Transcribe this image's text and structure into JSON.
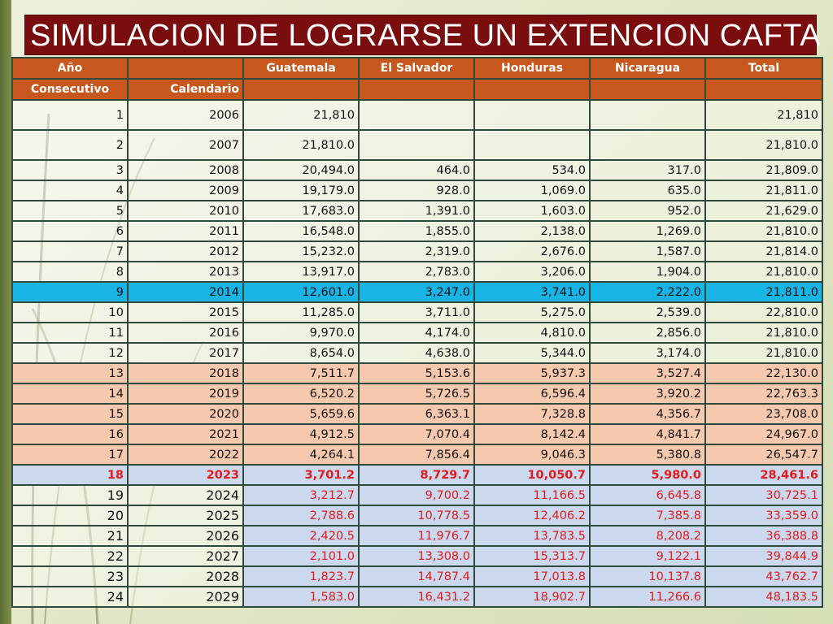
{
  "title": "SIMULACION DE LOGRARSE UN EXTENCION CAFTA",
  "headers": {
    "row1": [
      "Año",
      "",
      "Guatemala",
      "El Salvador",
      "Honduras",
      "Nicaragua",
      "Total"
    ],
    "row2": [
      "Consecutivo",
      "Calendario",
      "",
      "",
      "",
      "",
      ""
    ]
  },
  "rows": [
    {
      "n": "1",
      "year": "2006",
      "gt": "21,810",
      "sv": "",
      "hn": "",
      "ni": "",
      "total": "21,810",
      "style": "tall"
    },
    {
      "n": "2",
      "year": "2007",
      "gt": "21,810.0",
      "sv": "",
      "hn": "",
      "ni": "",
      "total": "21,810.0",
      "style": "tall"
    },
    {
      "n": "3",
      "year": "2008",
      "gt": "20,494.0",
      "sv": "464.0",
      "hn": "534.0",
      "ni": "317.0",
      "total": "21,809.0",
      "style": ""
    },
    {
      "n": "4",
      "year": "2009",
      "gt": "19,179.0",
      "sv": "928.0",
      "hn": "1,069.0",
      "ni": "635.0",
      "total": "21,811.0",
      "style": ""
    },
    {
      "n": "5",
      "year": "2010",
      "gt": "17,683.0",
      "sv": "1,391.0",
      "hn": "1,603.0",
      "ni": "952.0",
      "total": "21,629.0",
      "style": ""
    },
    {
      "n": "6",
      "year": "2011",
      "gt": "16,548.0",
      "sv": "1,855.0",
      "hn": "2,138.0",
      "ni": "1,269.0",
      "total": "21,810.0",
      "style": ""
    },
    {
      "n": "7",
      "year": "2012",
      "gt": "15,232.0",
      "sv": "2,319.0",
      "hn": "2,676.0",
      "ni": "1,587.0",
      "total": "21,814.0",
      "style": ""
    },
    {
      "n": "8",
      "year": "2013",
      "gt": "13,917.0",
      "sv": "2,783.0",
      "hn": "3,206.0",
      "ni": "1,904.0",
      "total": "21,810.0",
      "style": ""
    },
    {
      "n": "9",
      "year": "2014",
      "gt": "12,601.0",
      "sv": "3,247.0",
      "hn": "3,741.0",
      "ni": "2,222.0",
      "total": "21,811.0",
      "style": "hl-blue"
    },
    {
      "n": "10",
      "year": "2015",
      "gt": "11,285.0",
      "sv": "3,711.0",
      "hn": "5,275.0",
      "ni": "2,539.0",
      "total": "22,810.0",
      "style": ""
    },
    {
      "n": "11",
      "year": "2016",
      "gt": "9,970.0",
      "sv": "4,174.0",
      "hn": "4,810.0",
      "ni": "2,856.0",
      "total": "21,810.0",
      "style": ""
    },
    {
      "n": "12",
      "year": "2017",
      "gt": "8,654.0",
      "sv": "4,638.0",
      "hn": "5,344.0",
      "ni": "3,174.0",
      "total": "21,810.0",
      "style": ""
    },
    {
      "n": "13",
      "year": "2018",
      "gt": "7,511.7",
      "sv": "5,153.6",
      "hn": "5,937.3",
      "ni": "3,527.4",
      "total": "22,130.0",
      "style": "hl-peach"
    },
    {
      "n": "14",
      "year": "2019",
      "gt": "6,520.2",
      "sv": "5,726.5",
      "hn": "6,596.4",
      "ni": "3,920.2",
      "total": "22,763.3",
      "style": "hl-peach"
    },
    {
      "n": "15",
      "year": "2020",
      "gt": "5,659.6",
      "sv": "6,363.1",
      "hn": "7,328.8",
      "ni": "4,356.7",
      "total": "23,708.0",
      "style": "hl-peach"
    },
    {
      "n": "16",
      "year": "2021",
      "gt": "4,912.5",
      "sv": "7,070.4",
      "hn": "8,142.4",
      "ni": "4,841.7",
      "total": "24,967.0",
      "style": "hl-peach"
    },
    {
      "n": "17",
      "year": "2022",
      "gt": "4,264.1",
      "sv": "7,856.4",
      "hn": "9,046.3",
      "ni": "5,380.8",
      "total": "26,547.7",
      "style": "hl-peach"
    },
    {
      "n": "18",
      "year": "2023",
      "gt": "3,701.2",
      "sv": "8,729.7",
      "hn": "10,050.7",
      "ni": "5,980.0",
      "total": "28,461.6",
      "style": "hl-red"
    },
    {
      "n": "19",
      "year": "2024",
      "gt": "3,212.7",
      "sv": "9,700.2",
      "hn": "11,166.5",
      "ni": "6,645.8",
      "total": "30,725.1",
      "style": "proj"
    },
    {
      "n": "20",
      "year": "2025",
      "gt": "2,788.6",
      "sv": "10,778.5",
      "hn": "12,406.2",
      "ni": "7,385.8",
      "total": "33,359.0",
      "style": "proj"
    },
    {
      "n": "21",
      "year": "2026",
      "gt": "2,420.5",
      "sv": "11,976.7",
      "hn": "13,783.5",
      "ni": "8,208.2",
      "total": "36,388.8",
      "style": "proj"
    },
    {
      "n": "22",
      "year": "2027",
      "gt": "2,101.0",
      "sv": "13,308.0",
      "hn": "15,313.7",
      "ni": "9,122.1",
      "total": "39,844.9",
      "style": "proj"
    },
    {
      "n": "23",
      "year": "2028",
      "gt": "1,823.7",
      "sv": "14,787.4",
      "hn": "17,013.8",
      "ni": "10,137.8",
      "total": "43,762.7",
      "style": "proj"
    },
    {
      "n": "24",
      "year": "2029",
      "gt": "1,583.0",
      "sv": "16,431.2",
      "hn": "18,902.7",
      "ni": "11,266.6",
      "total": "48,183.5",
      "style": "proj"
    }
  ],
  "colors": {
    "title_bg": "#7a0d0d",
    "header_bg": "#c8571d",
    "highlight_blue": "#18b4e6",
    "highlight_peach": "#f6c8ae",
    "projection_bg": "#cbd8ee",
    "projection_text": "#e01b1b"
  }
}
